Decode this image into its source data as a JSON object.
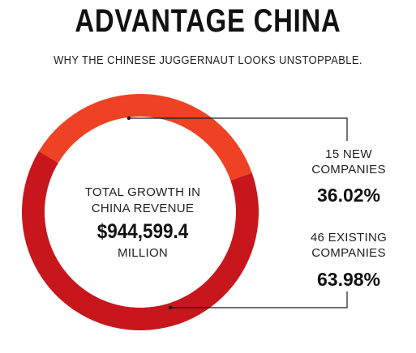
{
  "header": {
    "title": "ADVANTAGE CHINA",
    "subtitle": "WHY THE CHINESE JUGGERNAUT LOOKS UNSTOPPABLE."
  },
  "center": {
    "label_line1": "TOTAL GROWTH IN",
    "label_line2": "CHINA REVENUE",
    "value": "$944,599.4",
    "unit": "MILLION"
  },
  "chart_data": {
    "type": "pie",
    "donut": true,
    "categories": [
      "15 NEW COMPANIES",
      "46 EXISTING COMPANIES"
    ],
    "values": [
      36.02,
      63.98
    ],
    "value_labels": [
      "36.02%",
      "63.98%"
    ],
    "colors": [
      "#ef4123",
      "#c8161d"
    ],
    "legend_lines": [
      [
        "15 NEW",
        "COMPANIES"
      ],
      [
        "46 EXISTING",
        "COMPANIES"
      ]
    ]
  }
}
